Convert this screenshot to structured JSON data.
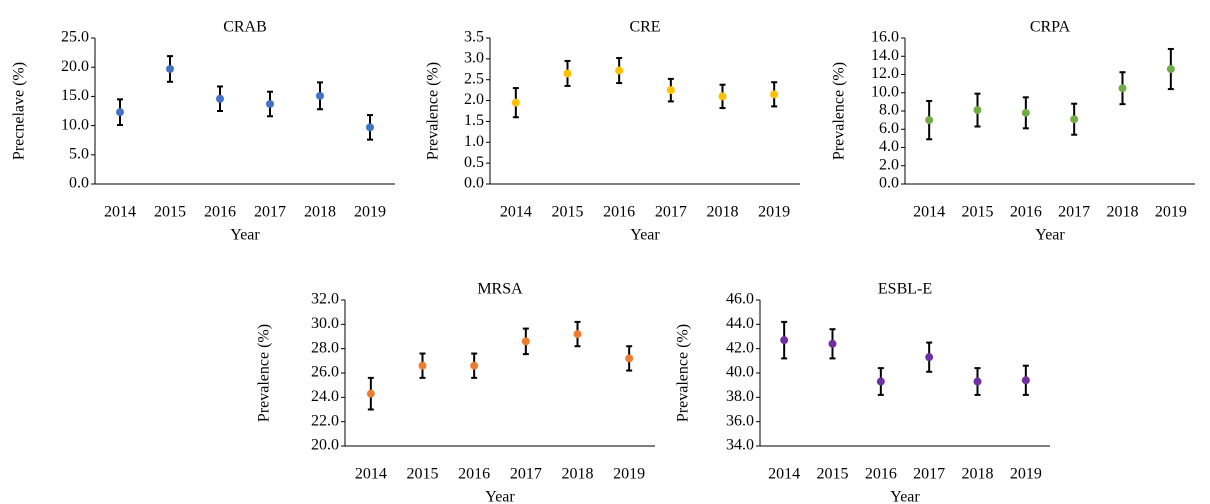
{
  "chart_data": [
    {
      "type": "errorbar",
      "title": "CRAB",
      "x_label": "Year",
      "y_label": "Precnelave (%)",
      "categories": [
        "2014",
        "2015",
        "2016",
        "2017",
        "2018",
        "2019"
      ],
      "values": [
        12.3,
        19.7,
        14.6,
        13.7,
        15.1,
        9.7
      ],
      "errors": [
        2.2,
        2.2,
        2.1,
        2.1,
        2.3,
        2.1
      ],
      "color": "#4472c4",
      "ylim": [
        0,
        25
      ],
      "yticks": [
        {
          "value": 0,
          "label": "0.0"
        },
        {
          "value": 5,
          "label": "5.0"
        },
        {
          "value": 10,
          "label": "10.0"
        },
        {
          "value": 15,
          "label": "15.0"
        },
        {
          "value": 20,
          "label": "20.0"
        },
        {
          "value": 25,
          "label": "25.0"
        }
      ]
    },
    {
      "type": "errorbar",
      "title": "CRE",
      "x_label": "Year",
      "y_label": "Prevalence (%)",
      "categories": [
        "2014",
        "2015",
        "2016",
        "2017",
        "2018",
        "2019"
      ],
      "values": [
        1.95,
        2.65,
        2.72,
        2.25,
        2.1,
        2.15
      ],
      "errors": [
        0.35,
        0.3,
        0.3,
        0.27,
        0.28,
        0.29
      ],
      "color": "#ffc000",
      "ylim": [
        0,
        3.5
      ],
      "yticks": [
        {
          "value": 0,
          "label": "0.0"
        },
        0.5,
        {
          "value": 1,
          "label": "1.0"
        },
        1.5,
        {
          "value": 2,
          "label": "2.0"
        },
        2.5,
        {
          "value": 3,
          "label": "3.0"
        },
        3.5
      ]
    },
    {
      "type": "errorbar",
      "title": "CRPA",
      "x_label": "Year",
      "y_label": "Prevalence (%)",
      "categories": [
        "2014",
        "2015",
        "2016",
        "2017",
        "2018",
        "2019"
      ],
      "values": [
        7.0,
        8.1,
        7.8,
        7.1,
        10.5,
        12.6
      ],
      "errors": [
        2.1,
        1.8,
        1.7,
        1.7,
        1.75,
        2.2
      ],
      "color": "#70ad47",
      "ylim": [
        0,
        16
      ],
      "yticks": [
        {
          "value": 0,
          "label": "0.0"
        },
        {
          "value": 2,
          "label": "2.0"
        },
        {
          "value": 4,
          "label": "4.0"
        },
        {
          "value": 6,
          "label": "6.0"
        },
        {
          "value": 8,
          "label": "8.0"
        },
        {
          "value": 10,
          "label": "10.0"
        },
        {
          "value": 12,
          "label": "12.0"
        },
        {
          "value": 14,
          "label": "14.0"
        },
        {
          "value": 16,
          "label": "16.0"
        }
      ]
    },
    {
      "type": "errorbar",
      "title": "MRSA",
      "x_label": "Year",
      "y_label": "Prevalence (%)",
      "categories": [
        "2014",
        "2015",
        "2016",
        "2017",
        "2018",
        "2019"
      ],
      "values": [
        24.3,
        26.6,
        26.6,
        28.6,
        29.2,
        27.2
      ],
      "errors": [
        1.3,
        1.0,
        1.0,
        1.05,
        1.0,
        1.0
      ],
      "color": "#ed7d31",
      "ylim": [
        20,
        32
      ],
      "yticks": [
        {
          "value": 20,
          "label": "20.0"
        },
        {
          "value": 22,
          "label": "22.0"
        },
        {
          "value": 24,
          "label": "24.0"
        },
        {
          "value": 26,
          "label": "26.0"
        },
        {
          "value": 28,
          "label": "28.0"
        },
        {
          "value": 30,
          "label": "30.0"
        },
        {
          "value": 32,
          "label": "32.0"
        }
      ]
    },
    {
      "type": "errorbar",
      "title": "ESBL-E",
      "x_label": "Year",
      "y_label": "Prevalence (%)",
      "categories": [
        "2014",
        "2015",
        "2016",
        "2017",
        "2018",
        "2019"
      ],
      "values": [
        42.7,
        42.4,
        39.3,
        41.3,
        39.3,
        39.4
      ],
      "errors": [
        1.5,
        1.2,
        1.1,
        1.2,
        1.1,
        1.2
      ],
      "color": "#7030a0",
      "ylim": [
        34,
        46
      ],
      "yticks": [
        {
          "value": 34,
          "label": "34.0"
        },
        {
          "value": 36,
          "label": "36.0"
        },
        {
          "value": 38,
          "label": "38.0"
        },
        {
          "value": 40,
          "label": "40.0"
        },
        {
          "value": 42,
          "label": "42.0"
        },
        {
          "value": 44,
          "label": "44.0"
        },
        {
          "value": 46,
          "label": "46.0"
        }
      ]
    }
  ]
}
